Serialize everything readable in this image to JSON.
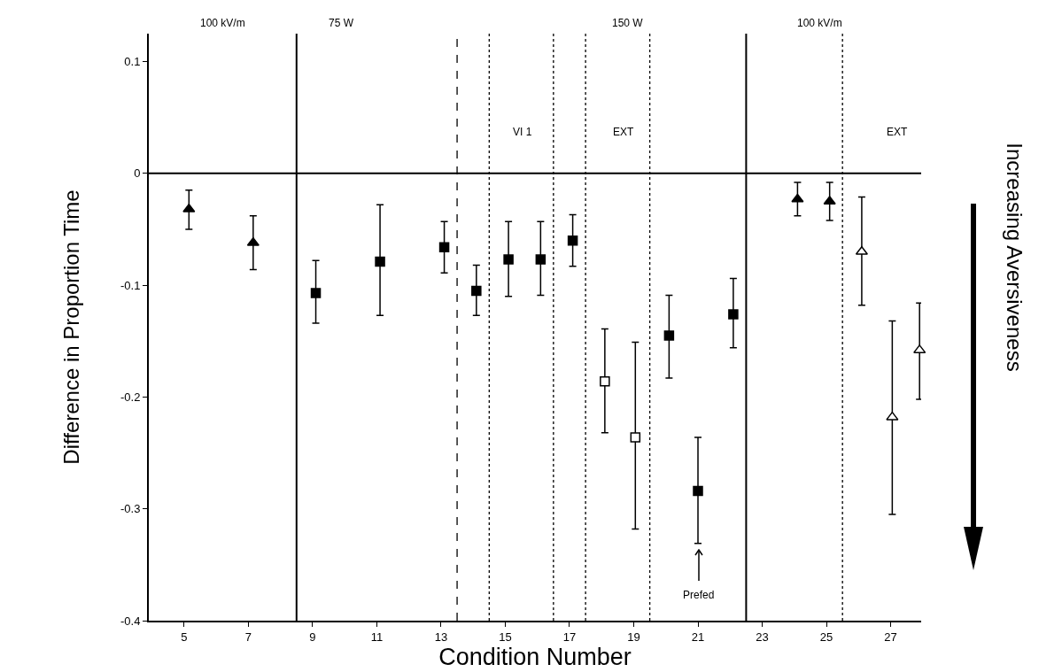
{
  "chart_data": {
    "type": "scatter",
    "xlabel": "Condition Number",
    "ylabel": "Difference in Proportion Time",
    "xlim": [
      3.9,
      27.95
    ],
    "xticks": [
      5,
      7,
      9,
      11,
      13,
      15,
      17,
      19,
      21,
      23,
      25,
      27
    ],
    "ylim": [
      -0.4,
      0.125
    ],
    "yticks": [
      {
        "value": 0.1,
        "label": "0.1"
      },
      0,
      -0.1,
      -0.2,
      -0.3,
      -0.4
    ],
    "series": [
      {
        "marker": "triangle",
        "color": "#000000",
        "x": [
          5.15,
          7.15,
          24.1,
          25.1
        ],
        "values": [
          -0.032,
          -0.062,
          -0.023,
          -0.025
        ],
        "errors": [
          [
            -0.05,
            -0.015
          ],
          [
            -0.086,
            -0.038
          ],
          [
            -0.038,
            -0.008
          ],
          [
            -0.042,
            -0.008
          ]
        ]
      },
      {
        "marker": "square",
        "color": "#000000",
        "x": [
          9.1,
          11.1,
          13.1,
          14.1,
          15.1,
          16.1,
          17.1,
          20.1,
          21,
          22.1
        ],
        "values": [
          -0.107,
          -0.079,
          -0.066,
          -0.105,
          -0.077,
          -0.077,
          -0.06,
          -0.145,
          -0.284,
          -0.126
        ],
        "errors": [
          [
            -0.134,
            -0.078
          ],
          [
            -0.127,
            -0.028
          ],
          [
            -0.089,
            -0.043
          ],
          [
            -0.127,
            -0.082
          ],
          [
            -0.11,
            -0.043
          ],
          [
            -0.109,
            -0.043
          ],
          [
            -0.083,
            -0.037
          ],
          [
            -0.183,
            -0.109
          ],
          [
            -0.331,
            -0.236
          ],
          [
            -0.156,
            -0.094
          ]
        ]
      },
      {
        "marker": "square",
        "color": "#ffffff",
        "x": [
          18.1,
          19.05
        ],
        "values": [
          -0.186,
          -0.236
        ],
        "errors": [
          [
            -0.232,
            -0.139
          ],
          [
            -0.318,
            -0.151
          ]
        ]
      },
      {
        "marker": "triangle",
        "color": "#ffffff",
        "x": [
          26.1,
          27.05,
          27.9
        ],
        "values": [
          -0.07,
          -0.218,
          -0.158
        ],
        "errors": [
          [
            -0.118,
            -0.021
          ],
          [
            -0.305,
            -0.132
          ],
          [
            -0.202,
            -0.116
          ]
        ]
      }
    ],
    "ref_lines": [
      {
        "axis": "y",
        "value": 0,
        "line_style": "solid"
      },
      {
        "axis": "x",
        "value": 8.5,
        "line_style": "solid"
      },
      {
        "axis": "x",
        "value": 13.5,
        "line_style": "dashed"
      },
      {
        "axis": "x",
        "value": 14.5,
        "line_style": "dotted"
      },
      {
        "axis": "x",
        "value": 16.5,
        "line_style": "dotted"
      },
      {
        "axis": "x",
        "value": 17.5,
        "line_style": "dotted"
      },
      {
        "axis": "x",
        "value": 19.5,
        "line_style": "dotted"
      },
      {
        "axis": "x",
        "value": 22.5,
        "line_style": "solid"
      },
      {
        "axis": "x",
        "value": 25.5,
        "line_style": "dotted"
      }
    ],
    "annotations": [
      "Increasing Aversiveness",
      "Prefed",
      "100 kV/m",
      "75 W",
      "150 W",
      "100 kV/m",
      "VI 1",
      "EXT",
      "EXT"
    ]
  }
}
